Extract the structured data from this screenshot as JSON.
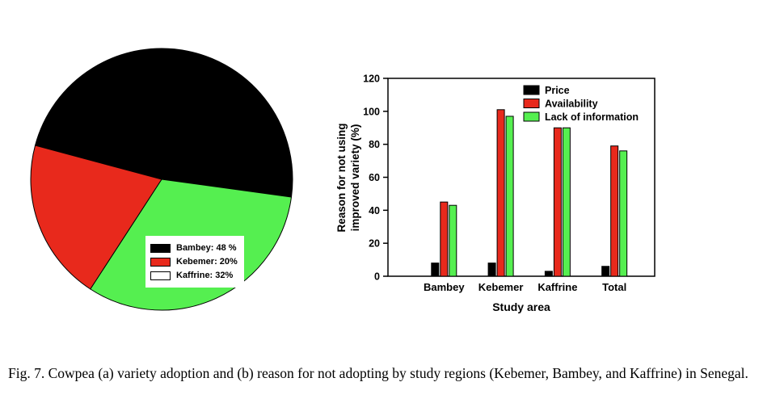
{
  "figure": {
    "caption": "Fig. 7. Cowpea (a) variety adoption and (b) reason for not adopting by study regions (Kebemer, Bambey, and Kaffrine) in Senegal."
  },
  "chart_data": [
    {
      "type": "pie",
      "slices": [
        {
          "label": "Bambey",
          "value": 48,
          "color": "#000000",
          "legend_label": "Bambey: 48 %",
          "legend_fill": "#000000"
        },
        {
          "label": "Kebemer",
          "value": 20,
          "color": "#e8291c",
          "legend_label": "Kebemer: 20%",
          "legend_fill": "#e8291c"
        },
        {
          "label": "Kaffrine",
          "value": 32,
          "color": "#55ef50",
          "legend_label": "Kaffrine: 32%",
          "legend_fill": "#ffffff"
        }
      ],
      "start_angle_deg": 285,
      "draw_order": [
        0,
        2,
        1
      ],
      "legend_position": "inside-bottom-right"
    },
    {
      "type": "bar",
      "categories": [
        "Bambey",
        "Kebemer",
        "Kaffrine",
        "Total"
      ],
      "series": [
        {
          "name": "Price",
          "color": "#000000",
          "values": [
            8,
            8,
            3,
            6
          ]
        },
        {
          "name": "Availability",
          "color": "#e8291c",
          "values": [
            45,
            101,
            90,
            79
          ]
        },
        {
          "name": "Lack of information",
          "color": "#55ef50",
          "values": [
            43,
            97,
            90,
            76
          ]
        }
      ],
      "xlabel": "Study area",
      "ylabel": "Reason for not using improved variety (%)",
      "ylabel_lines": [
        "Reason for not using",
        "improved variety (%)"
      ],
      "ylim": [
        0,
        120
      ],
      "yticks": [
        0,
        20,
        40,
        60,
        80,
        100,
        120
      ],
      "legend_position": "inside-top-right",
      "grid": false
    }
  ]
}
